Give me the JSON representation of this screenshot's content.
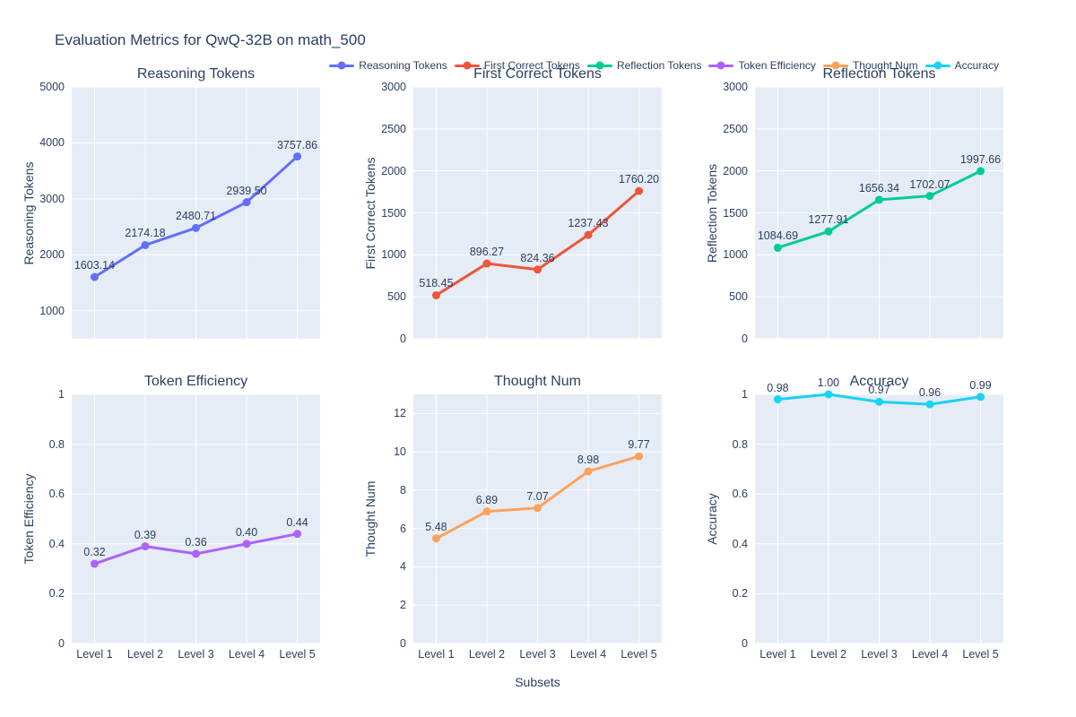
{
  "figure": {
    "title": "Evaluation Metrics for QwQ-32B on math_500",
    "xaxis_title": "Subsets"
  },
  "colors": {
    "plot_background": "#E5ECF6",
    "gridline": "#FFFFFF",
    "text": "#2A3F5F"
  },
  "legend": {
    "items": [
      {
        "label": "Reasoning Tokens",
        "color": "#636EFA"
      },
      {
        "label": "First Correct Tokens",
        "color": "#EF553B"
      },
      {
        "label": "Reflection Tokens",
        "color": "#00CC96"
      },
      {
        "label": "Token Efficiency",
        "color": "#AB63FA"
      },
      {
        "label": "Thought Num",
        "color": "#FFA15A"
      },
      {
        "label": "Accuracy",
        "color": "#19D3F3"
      }
    ]
  },
  "chart_data": [
    {
      "type": "line",
      "title": "Reasoning Tokens",
      "ylabel": "Reasoning Tokens",
      "color": "#636EFA",
      "categories": [
        "Level 1",
        "Level 2",
        "Level 3",
        "Level 4",
        "Level 5"
      ],
      "values": [
        1603.14,
        2174.18,
        2480.71,
        2939.5,
        3757.86
      ],
      "value_labels": [
        "1603.14",
        "2174.18",
        "2480.71",
        "2939.50",
        "3757.86"
      ],
      "ylim": [
        500,
        5000
      ],
      "yticks": [
        "1000",
        "2000",
        "3000",
        "4000",
        "5000"
      ],
      "show_x_tick_labels": false,
      "grid": true,
      "legend_position": "top"
    },
    {
      "type": "line",
      "title": "First Correct Tokens",
      "ylabel": "First Correct Tokens",
      "color": "#EF553B",
      "categories": [
        "Level 1",
        "Level 2",
        "Level 3",
        "Level 4",
        "Level 5"
      ],
      "values": [
        518.45,
        896.27,
        824.36,
        1237.43,
        1760.2
      ],
      "value_labels": [
        "518.45",
        "896.27",
        "824.36",
        "1237.43",
        "1760.20"
      ],
      "ylim": [
        0,
        3000
      ],
      "yticks": [
        "0",
        "500",
        "1000",
        "1500",
        "2000",
        "2500",
        "3000"
      ],
      "show_x_tick_labels": false,
      "grid": true,
      "legend_position": "top"
    },
    {
      "type": "line",
      "title": "Reflection Tokens",
      "ylabel": "Reflection Tokens",
      "color": "#00CC96",
      "categories": [
        "Level 1",
        "Level 2",
        "Level 3",
        "Level 4",
        "Level 5"
      ],
      "values": [
        1084.69,
        1277.91,
        1656.34,
        1702.07,
        1997.66
      ],
      "value_labels": [
        "1084.69",
        "1277.91",
        "1656.34",
        "1702.07",
        "1997.66"
      ],
      "ylim": [
        0,
        3000
      ],
      "yticks": [
        "0",
        "500",
        "1000",
        "1500",
        "2000",
        "2500",
        "3000"
      ],
      "show_x_tick_labels": false,
      "grid": true,
      "legend_position": "top"
    },
    {
      "type": "line",
      "title": "Token Efficiency",
      "ylabel": "Token Efficiency",
      "color": "#AB63FA",
      "categories": [
        "Level 1",
        "Level 2",
        "Level 3",
        "Level 4",
        "Level 5"
      ],
      "values": [
        0.32,
        0.39,
        0.36,
        0.4,
        0.44
      ],
      "value_labels": [
        "0.32",
        "0.39",
        "0.36",
        "0.40",
        "0.44"
      ],
      "ylim": [
        0,
        1
      ],
      "yticks": [
        "0",
        "0.2",
        "0.4",
        "0.6",
        "0.8",
        "1"
      ],
      "show_x_tick_labels": true,
      "grid": true,
      "legend_position": "top"
    },
    {
      "type": "line",
      "title": "Thought Num",
      "ylabel": "Thought Num",
      "color": "#FFA15A",
      "categories": [
        "Level 1",
        "Level 2",
        "Level 3",
        "Level 4",
        "Level 5"
      ],
      "values": [
        5.48,
        6.89,
        7.07,
        8.98,
        9.77
      ],
      "value_labels": [
        "5.48",
        "6.89",
        "7.07",
        "8.98",
        "9.77"
      ],
      "ylim": [
        0,
        13
      ],
      "yticks": [
        "0",
        "2",
        "4",
        "6",
        "8",
        "10",
        "12"
      ],
      "show_x_tick_labels": true,
      "grid": true,
      "legend_position": "top"
    },
    {
      "type": "line",
      "title": "Accuracy",
      "ylabel": "Accuracy",
      "color": "#19D3F3",
      "categories": [
        "Level 1",
        "Level 2",
        "Level 3",
        "Level 4",
        "Level 5"
      ],
      "values": [
        0.98,
        1.0,
        0.97,
        0.96,
        0.99
      ],
      "value_labels": [
        "0.98",
        "1.00",
        "0.97",
        "0.96",
        "0.99"
      ],
      "ylim": [
        0,
        1
      ],
      "yticks": [
        "0",
        "0.2",
        "0.4",
        "0.6",
        "0.8",
        "1"
      ],
      "show_x_tick_labels": true,
      "grid": true,
      "legend_position": "top"
    }
  ]
}
